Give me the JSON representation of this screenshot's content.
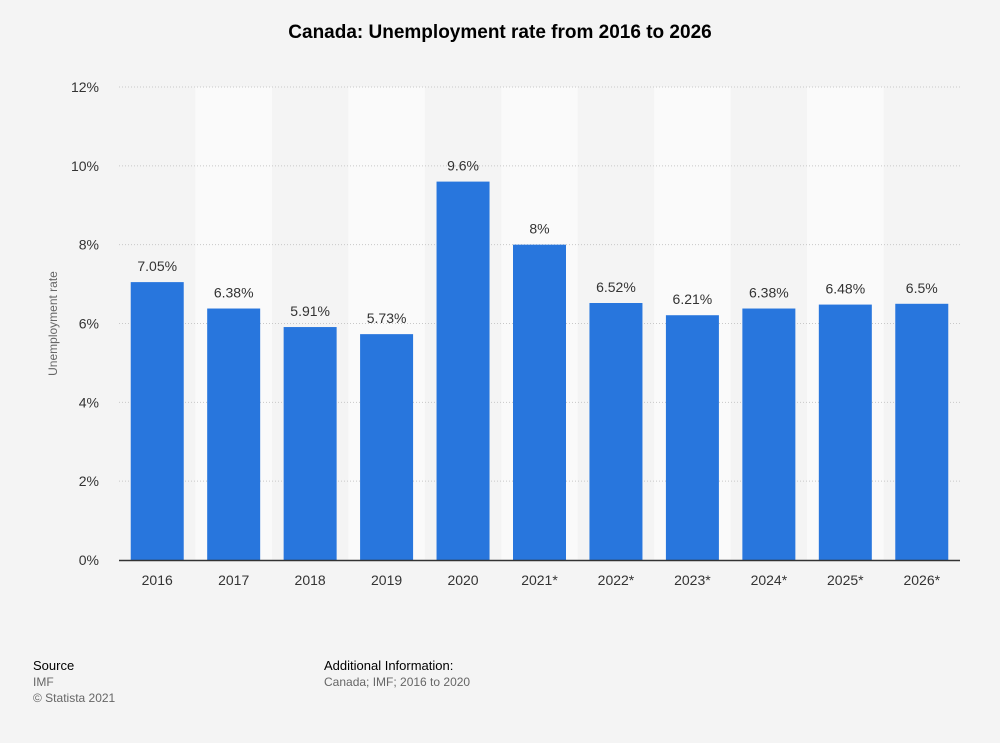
{
  "chart_data": {
    "type": "bar",
    "title": "Canada: Unemployment rate from 2016 to 2026",
    "xlabel": "",
    "ylabel": "Unemployment rate",
    "categories": [
      "2016",
      "2017",
      "2018",
      "2019",
      "2020",
      "2021*",
      "2022*",
      "2023*",
      "2024*",
      "2025*",
      "2026*"
    ],
    "values": [
      7.05,
      6.38,
      5.91,
      5.73,
      9.6,
      8,
      6.52,
      6.21,
      6.38,
      6.48,
      6.5
    ],
    "value_labels": [
      "7.05%",
      "6.38%",
      "5.91%",
      "5.73%",
      "9.6%",
      "8%",
      "6.52%",
      "6.21%",
      "6.38%",
      "6.48%",
      "6.5%"
    ],
    "ylim": [
      0,
      12
    ],
    "yticks": [
      0,
      2,
      4,
      6,
      8,
      10,
      12
    ],
    "ytick_labels": [
      "0%",
      "2%",
      "4%",
      "6%",
      "8%",
      "10%",
      "12%"
    ],
    "grid": true,
    "legend": "none",
    "colors": {
      "bar": "#2876dd",
      "background": "#f4f4f4",
      "alt_band": "#fafafa",
      "grid": "#c8c8c8",
      "axis": "#333333"
    }
  },
  "footer": {
    "source_heading": "Source",
    "source_lines": [
      "IMF",
      "© Statista 2021"
    ],
    "additional_heading": "Additional Information:",
    "additional_text": "Canada; IMF; 2016 to 2020"
  }
}
